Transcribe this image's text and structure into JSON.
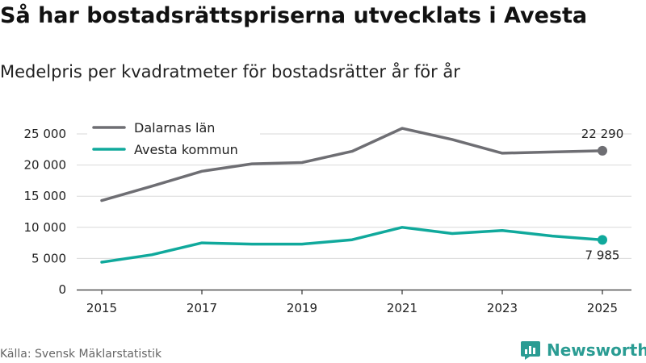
{
  "title": "Så har bostadsrättspriserna utvecklats i Avesta",
  "subtitle": "Medelpris per kvadratmeter för bostadsrätter år för år",
  "source": "Källa: Svensk Mäklarstatistik",
  "brand": {
    "name": "Newsworthy",
    "icon": "newsworthy-logo-icon"
  },
  "colors": {
    "dalarna": "#6e6e73",
    "avesta": "#10a99c",
    "grid": "#d9d9d9",
    "axis": "#333333"
  },
  "chart_data": {
    "type": "line",
    "title": "Så har bostadsrättspriserna utvecklats i Avesta",
    "xlabel": "",
    "ylabel": "",
    "x": [
      2015,
      2016,
      2017,
      2018,
      2019,
      2020,
      2021,
      2022,
      2023,
      2024,
      2025
    ],
    "xticks": [
      "2015",
      "2017",
      "2019",
      "2021",
      "2023",
      "2025"
    ],
    "yticks": [
      0,
      5000,
      10000,
      15000,
      20000,
      25000
    ],
    "ytick_labels": [
      "0",
      "5 000",
      "10 000",
      "15 000",
      "20 000",
      "25 000"
    ],
    "ylim": [
      0,
      26000
    ],
    "grid": true,
    "legend": "top-left",
    "series": [
      {
        "name": "Dalarnas län",
        "color": "#6e6e73",
        "values": [
          14300,
          16600,
          19000,
          20200,
          20400,
          22200,
          25900,
          24100,
          21900,
          22100,
          22290
        ],
        "end_label": "22 290"
      },
      {
        "name": "Avesta kommun",
        "color": "#10a99c",
        "values": [
          4400,
          5600,
          7500,
          7300,
          7300,
          8000,
          10000,
          9000,
          9500,
          8600,
          7985
        ],
        "end_label": "7 985"
      }
    ]
  }
}
